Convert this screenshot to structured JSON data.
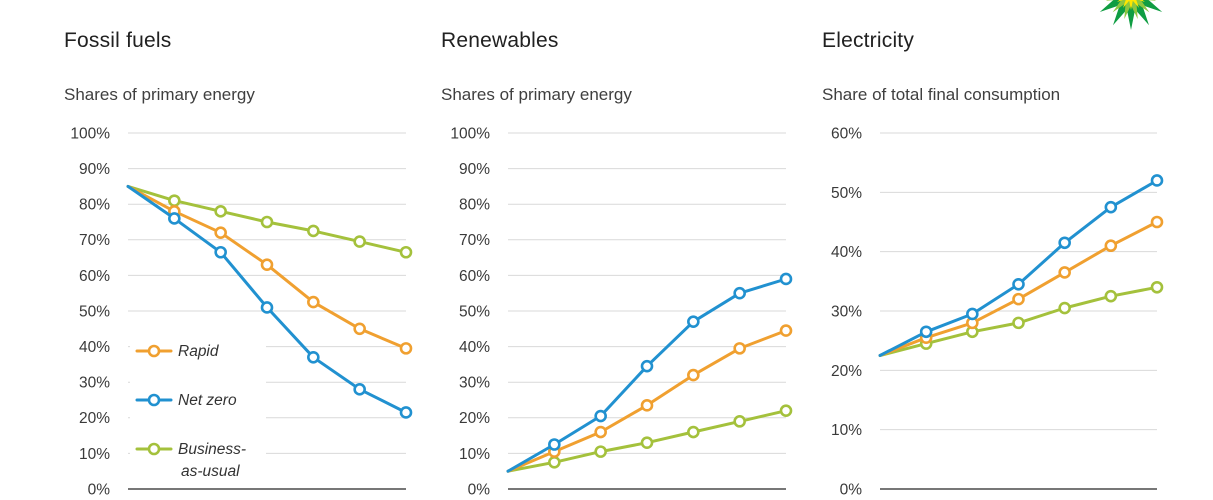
{
  "page": {
    "background": "#ffffff"
  },
  "logo": {
    "name": "bp-helios-logo",
    "colors": {
      "outer": "#0f9d42",
      "mid": "#8dc63f",
      "inner": "#ffe600",
      "core": "#ffffff"
    }
  },
  "legend": {
    "items": [
      {
        "label": "Rapid"
      },
      {
        "label": "Net zero"
      },
      {
        "label": "Business-\nas-usual"
      }
    ],
    "text_color": "#333333"
  },
  "style_colors": {
    "gridline": "#d9d9d9",
    "axis": "#4a4a4a",
    "tick_text": "#3a3a3a"
  },
  "chart_data": [
    {
      "type": "line",
      "title": "Fossil fuels",
      "subtitle": "Shares of primary energy",
      "ylim": [
        0,
        100
      ],
      "yticks": [
        "100%",
        "90%",
        "80%",
        "70%",
        "60%",
        "50%",
        "40%",
        "30%",
        "20%",
        "10%",
        "0%"
      ],
      "grid": true,
      "legend_position": "inside-left",
      "series": [
        {
          "name": "Rapid",
          "color": "#f0a030",
          "values": [
            85,
            78,
            72,
            63,
            52.5,
            45,
            39.5
          ]
        },
        {
          "name": "Net zero",
          "color": "#2191d0",
          "values": [
            85,
            76,
            66.5,
            51,
            37,
            28,
            21.5
          ]
        },
        {
          "name": "Business-as-usual",
          "color": "#a4c13c",
          "values": [
            85,
            81,
            78,
            75,
            72.5,
            69.5,
            66.5
          ]
        }
      ]
    },
    {
      "type": "line",
      "title": "Renewables",
      "subtitle": "Shares of primary energy",
      "ylim": [
        0,
        100
      ],
      "yticks": [
        "100%",
        "90%",
        "80%",
        "70%",
        "60%",
        "50%",
        "40%",
        "30%",
        "20%",
        "10%",
        "0%"
      ],
      "grid": true,
      "legend_position": "none",
      "series": [
        {
          "name": "Rapid",
          "color": "#f0a030",
          "values": [
            5,
            10.5,
            16,
            23.5,
            32,
            39.5,
            44.5
          ]
        },
        {
          "name": "Net zero",
          "color": "#2191d0",
          "values": [
            5,
            12.5,
            20.5,
            34.5,
            47,
            55,
            59
          ]
        },
        {
          "name": "Business-as-usual",
          "color": "#a4c13c",
          "values": [
            5,
            7.5,
            10.5,
            13,
            16,
            19,
            22
          ]
        }
      ]
    },
    {
      "type": "line",
      "title": "Electricity",
      "subtitle": "Share of total final consumption",
      "ylim": [
        0,
        60
      ],
      "yticks": [
        "60%",
        "50%",
        "40%",
        "30%",
        "20%",
        "10%",
        "0%"
      ],
      "grid": true,
      "legend_position": "none",
      "series": [
        {
          "name": "Rapid",
          "color": "#f0a030",
          "values": [
            22.5,
            25.5,
            28,
            32,
            36.5,
            41,
            45
          ]
        },
        {
          "name": "Net zero",
          "color": "#2191d0",
          "values": [
            22.5,
            26.5,
            29.5,
            34.5,
            41.5,
            47.5,
            52
          ]
        },
        {
          "name": "Business-as-usual",
          "color": "#a4c13c",
          "values": [
            22.5,
            24.5,
            26.5,
            28,
            30.5,
            32.5,
            34
          ]
        }
      ]
    }
  ]
}
